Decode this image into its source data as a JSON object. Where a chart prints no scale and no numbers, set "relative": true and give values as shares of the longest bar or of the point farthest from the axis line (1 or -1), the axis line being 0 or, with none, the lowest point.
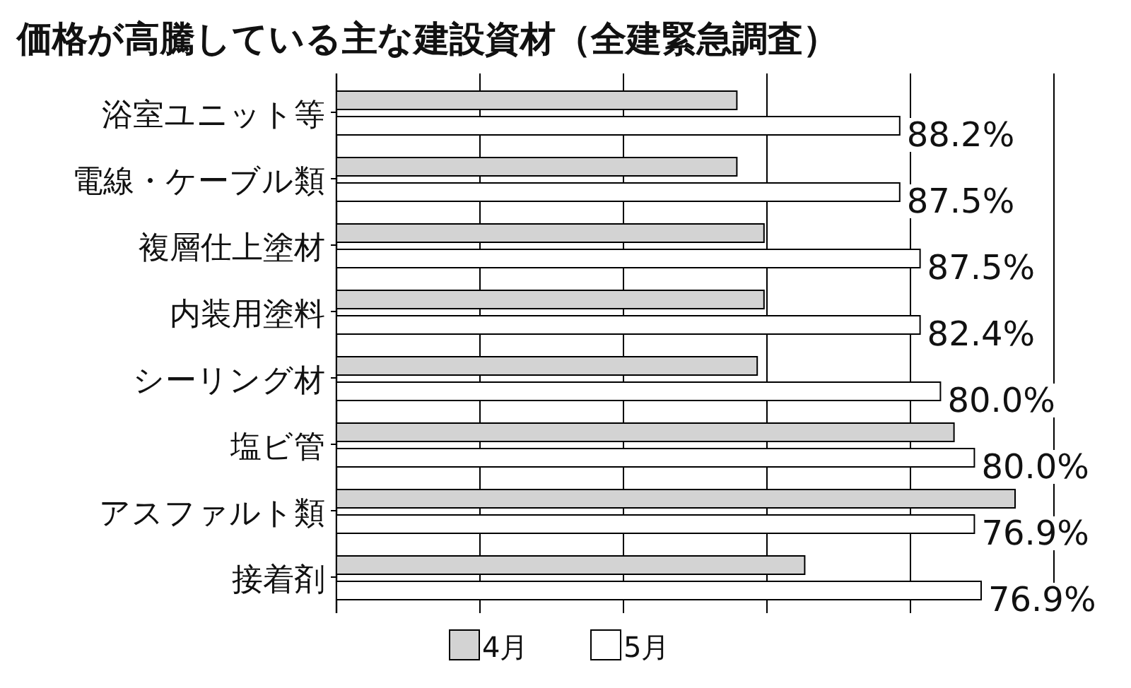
{
  "chart_data": {
    "type": "bar",
    "orientation": "horizontal",
    "relative": true,
    "title": "価格が高騰している主な建設資材（全建緊急調査）",
    "categories": [
      "浴室ユニット等",
      "電線・ケーブル類",
      "複層仕上塗材",
      "内装用塗料",
      "シーリング材",
      "塩ビ管",
      "アスファルト類",
      "接着剤"
    ],
    "series": [
      {
        "name": "4月",
        "color": "#d3d3d3",
        "values": [
          0.59,
          0.59,
          0.63,
          0.63,
          0.62,
          0.91,
          1,
          0.69
        ]
      },
      {
        "name": "5月",
        "color": "#ffffff",
        "values": [
          0.83,
          0.83,
          0.86,
          0.86,
          0.89,
          0.94,
          0.94,
          0.95
        ]
      }
    ],
    "annotations": [
      "88.2%",
      "87.5%",
      "87.5%",
      "82.4%",
      "80.0%",
      "80.0%",
      "76.9%",
      "76.9%"
    ],
    "grid": "x",
    "legend": "bottom"
  }
}
